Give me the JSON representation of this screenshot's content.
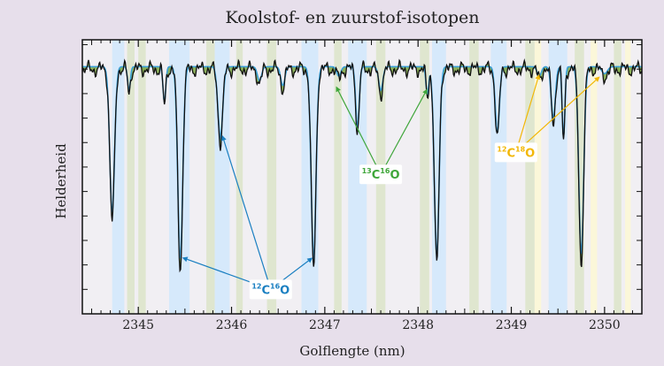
{
  "chart_data": {
    "type": "line",
    "title": "Koolstof- en zuurstof-isotopen",
    "xlabel": "Golflengte (nm)",
    "ylabel": "Helderheid",
    "xlim": [
      2344.4,
      2350.4
    ],
    "ylim": [
      0,
      1.12
    ],
    "x_ticks": [
      2345,
      2346,
      2347,
      2348,
      2349,
      2350
    ],
    "x_tick_labels": [
      "2345",
      "2346",
      "2347",
      "2348",
      "2349",
      "2350"
    ],
    "continuum": 1.0,
    "series": [
      {
        "role": "observed",
        "color": "#111111",
        "lines": [
          {
            "x": 2344.72,
            "depth": 0.62,
            "width": 0.035
          },
          {
            "x": 2344.9,
            "depth": 0.1,
            "width": 0.02
          },
          {
            "x": 2345.45,
            "depth": 0.82,
            "width": 0.035
          },
          {
            "x": 2345.28,
            "depth": 0.15,
            "width": 0.02
          },
          {
            "x": 2345.88,
            "depth": 0.3,
            "width": 0.035
          },
          {
            "x": 2346.3,
            "depth": 0.06,
            "width": 0.03
          },
          {
            "x": 2346.88,
            "depth": 0.82,
            "width": 0.035
          },
          {
            "x": 2346.55,
            "depth": 0.08,
            "width": 0.03
          },
          {
            "x": 2347.15,
            "depth": 0.04,
            "width": 0.03
          },
          {
            "x": 2347.35,
            "depth": 0.26,
            "width": 0.025
          },
          {
            "x": 2347.6,
            "depth": 0.1,
            "width": 0.03
          },
          {
            "x": 2348.1,
            "depth": 0.12,
            "width": 0.02
          },
          {
            "x": 2348.2,
            "depth": 0.8,
            "width": 0.035
          },
          {
            "x": 2348.85,
            "depth": 0.28,
            "width": 0.03
          },
          {
            "x": 2349.3,
            "depth": 0.04,
            "width": 0.03
          },
          {
            "x": 2349.45,
            "depth": 0.22,
            "width": 0.03
          },
          {
            "x": 2349.56,
            "depth": 0.3,
            "width": 0.02
          },
          {
            "x": 2349.75,
            "depth": 0.8,
            "width": 0.035
          },
          {
            "x": 2350.0,
            "depth": 0.03,
            "width": 0.04
          }
        ]
      },
      {
        "role": "model",
        "color": "#3a9fd6",
        "fill_color": "#6a9b2a"
      }
    ],
    "bands": [
      {
        "from": 2344.72,
        "to": 2344.85,
        "kind": "12C16O"
      },
      {
        "from": 2344.88,
        "to": 2344.96,
        "kind": "13C16O"
      },
      {
        "from": 2345.0,
        "to": 2345.08,
        "kind": "13C16O"
      },
      {
        "from": 2345.33,
        "to": 2345.55,
        "kind": "12C16O"
      },
      {
        "from": 2345.73,
        "to": 2345.82,
        "kind": "13C16O"
      },
      {
        "from": 2345.82,
        "to": 2345.98,
        "kind": "12C16O"
      },
      {
        "from": 2346.05,
        "to": 2346.12,
        "kind": "13C16O"
      },
      {
        "from": 2346.38,
        "to": 2346.48,
        "kind": "13C16O"
      },
      {
        "from": 2346.75,
        "to": 2346.93,
        "kind": "12C16O"
      },
      {
        "from": 2347.1,
        "to": 2347.18,
        "kind": "13C16O"
      },
      {
        "from": 2347.25,
        "to": 2347.45,
        "kind": "12C16O"
      },
      {
        "from": 2347.55,
        "to": 2347.65,
        "kind": "13C16O"
      },
      {
        "from": 2348.02,
        "to": 2348.12,
        "kind": "13C16O"
      },
      {
        "from": 2348.15,
        "to": 2348.3,
        "kind": "12C16O"
      },
      {
        "from": 2348.55,
        "to": 2348.65,
        "kind": "13C16O"
      },
      {
        "from": 2348.78,
        "to": 2348.95,
        "kind": "12C16O"
      },
      {
        "from": 2349.15,
        "to": 2349.25,
        "kind": "13C16O"
      },
      {
        "from": 2349.25,
        "to": 2349.32,
        "kind": "12C18O"
      },
      {
        "from": 2349.4,
        "to": 2349.6,
        "kind": "12C16O"
      },
      {
        "from": 2349.68,
        "to": 2349.78,
        "kind": "13C16O"
      },
      {
        "from": 2349.85,
        "to": 2349.92,
        "kind": "12C18O"
      },
      {
        "from": 2350.1,
        "to": 2350.18,
        "kind": "13C16O"
      },
      {
        "from": 2350.22,
        "to": 2350.28,
        "kind": "12C18O"
      }
    ],
    "band_colors": {
      "12C16O": "#d6e9fb",
      "13C16O": "#dfe6cf",
      "12C18O": "#fbf7d9",
      "gap": "#f1eff3"
    },
    "annotations": [
      {
        "kind": "12C16O",
        "color": "#1a7fc1",
        "label": {
          "mass": "12",
          "el1": "C",
          "mass2": "16",
          "el2": "O"
        },
        "label_pos": [
          2346.42,
          0.1
        ],
        "targets": [
          [
            2345.47,
            0.23
          ],
          [
            2345.9,
            0.73
          ],
          [
            2346.87,
            0.23
          ]
        ]
      },
      {
        "kind": "13C16O",
        "color": "#3fa63a",
        "label": {
          "mass": "13",
          "el1": "C",
          "mass2": "16",
          "el2": "O"
        },
        "label_pos": [
          2347.6,
          0.57
        ],
        "targets": [
          [
            2347.12,
            0.93
          ],
          [
            2348.1,
            0.92
          ]
        ]
      },
      {
        "kind": "12C18O",
        "color": "#f2b705",
        "label": {
          "mass": "12",
          "el1": "C",
          "mass2": "18",
          "el2": "O"
        },
        "label_pos": [
          2349.05,
          0.66
        ],
        "targets": [
          [
            2349.3,
            0.98
          ],
          [
            2349.95,
            0.97
          ]
        ]
      }
    ]
  }
}
